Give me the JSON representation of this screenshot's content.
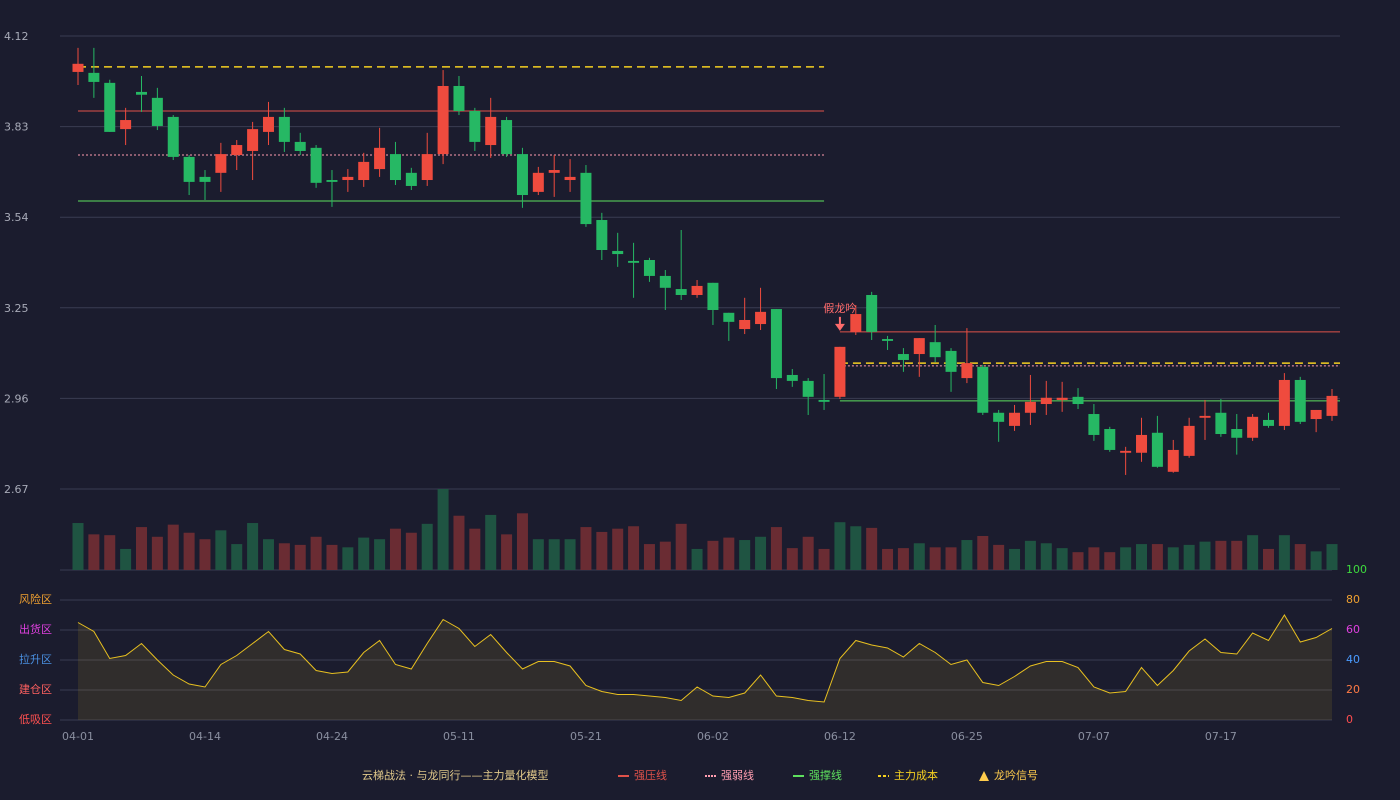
{
  "chart_data": {
    "type": "candlestick",
    "categories": [
      "04-01",
      null,
      null,
      null,
      null,
      null,
      null,
      null,
      "04-14",
      null,
      null,
      null,
      null,
      null,
      null,
      null,
      "04-24",
      null,
      null,
      null,
      null,
      null,
      null,
      null,
      "05-11",
      null,
      null,
      null,
      null,
      null,
      null,
      null,
      "05-21",
      null,
      null,
      null,
      null,
      null,
      null,
      null,
      "06-02",
      null,
      null,
      null,
      null,
      null,
      null,
      null,
      "06-12",
      null,
      null,
      null,
      null,
      null,
      null,
      null,
      "06-25",
      null,
      null,
      null,
      null,
      null,
      null,
      null,
      "07-07",
      null,
      null,
      null,
      null,
      null,
      null,
      null,
      "07-17",
      null,
      null,
      null,
      null,
      null,
      null,
      null
    ],
    "open": [
      4.005,
      4.002,
      3.97,
      3.822,
      3.941,
      3.922,
      3.861,
      3.733,
      3.669,
      3.682,
      3.739,
      3.752,
      3.813,
      3.861,
      3.781,
      3.762,
      3.659,
      3.659,
      3.659,
      3.694,
      3.742,
      3.682,
      3.659,
      3.742,
      3.96,
      3.88,
      3.771,
      3.851,
      3.742,
      3.621,
      3.682,
      3.659,
      3.682,
      3.531,
      3.432,
      3.4,
      3.403,
      3.352,
      3.31,
      3.291,
      3.33,
      3.234,
      3.182,
      3.198,
      3.246,
      3.035,
      3.016,
      2.955,
      2.965,
      3.173,
      3.291,
      3.15,
      3.102,
      3.102,
      3.14,
      3.112,
      3.025,
      3.061,
      2.914,
      2.872,
      2.914,
      2.942,
      2.955,
      2.965,
      2.91,
      2.862,
      2.786,
      2.786,
      2.85,
      2.725,
      2.776,
      2.898,
      2.914,
      2.862,
      2.834,
      2.891,
      2.872,
      3.019,
      2.894,
      2.904
    ],
    "high": [
      4.082,
      4.082,
      3.98,
      3.89,
      3.992,
      3.954,
      3.867,
      3.739,
      3.691,
      3.778,
      3.787,
      3.845,
      3.909,
      3.89,
      3.81,
      3.771,
      3.691,
      3.694,
      3.746,
      3.826,
      3.781,
      3.698,
      3.81,
      4.011,
      3.992,
      3.89,
      3.922,
      3.861,
      3.762,
      3.701,
      3.739,
      3.726,
      3.707,
      3.554,
      3.49,
      3.458,
      3.41,
      3.371,
      3.499,
      3.339,
      3.33,
      3.234,
      3.282,
      3.314,
      3.246,
      3.054,
      3.025,
      3.038,
      3.125,
      3.259,
      3.301,
      3.16,
      3.121,
      3.153,
      3.195,
      3.121,
      3.185,
      3.067,
      2.923,
      2.939,
      3.035,
      3.016,
      3.013,
      2.993,
      2.942,
      2.869,
      2.805,
      2.898,
      2.904,
      2.827,
      2.898,
      2.955,
      2.958,
      2.91,
      2.91,
      2.914,
      3.041,
      3.029,
      2.923,
      2.99
    ],
    "low": [
      3.963,
      3.922,
      3.813,
      3.771,
      3.877,
      3.819,
      3.723,
      3.611,
      3.595,
      3.621,
      3.691,
      3.659,
      3.771,
      3.749,
      3.739,
      3.634,
      3.573,
      3.621,
      3.637,
      3.669,
      3.643,
      3.627,
      3.64,
      3.71,
      3.867,
      3.752,
      3.73,
      3.733,
      3.57,
      3.611,
      3.605,
      3.621,
      3.509,
      3.403,
      3.381,
      3.282,
      3.333,
      3.243,
      3.275,
      3.282,
      3.195,
      3.144,
      3.166,
      3.179,
      2.99,
      2.997,
      2.907,
      2.923,
      2.958,
      3.163,
      3.147,
      3.115,
      3.045,
      3.029,
      3.076,
      2.981,
      3.009,
      2.907,
      2.821,
      2.856,
      2.875,
      2.907,
      2.917,
      2.926,
      2.824,
      2.789,
      2.715,
      2.757,
      2.738,
      2.722,
      2.77,
      2.827,
      2.837,
      2.78,
      2.824,
      2.866,
      2.859,
      2.878,
      2.852,
      2.888
    ],
    "close": [
      4.031,
      3.973,
      3.813,
      3.851,
      3.932,
      3.832,
      3.733,
      3.653,
      3.653,
      3.742,
      3.771,
      3.822,
      3.861,
      3.781,
      3.752,
      3.65,
      3.653,
      3.669,
      3.717,
      3.762,
      3.659,
      3.64,
      3.742,
      3.96,
      3.88,
      3.781,
      3.861,
      3.742,
      3.611,
      3.682,
      3.691,
      3.669,
      3.518,
      3.435,
      3.422,
      3.394,
      3.352,
      3.314,
      3.291,
      3.32,
      3.243,
      3.205,
      3.211,
      3.237,
      3.025,
      3.016,
      2.965,
      2.949,
      3.125,
      3.23,
      3.173,
      3.144,
      3.083,
      3.153,
      3.092,
      3.045,
      3.073,
      2.914,
      2.885,
      2.914,
      2.949,
      2.962,
      2.962,
      2.942,
      2.843,
      2.795,
      2.792,
      2.843,
      2.741,
      2.795,
      2.872,
      2.904,
      2.846,
      2.834,
      2.901,
      2.872,
      3.019,
      2.885,
      2.923,
      2.968
    ],
    "volume": [
      58,
      44,
      43,
      26,
      53,
      41,
      56,
      46,
      38,
      49,
      32,
      58,
      38,
      33,
      31,
      41,
      31,
      28,
      40,
      38,
      51,
      46,
      57,
      100,
      67,
      51,
      68,
      44,
      70,
      38,
      38,
      38,
      53,
      47,
      51,
      54,
      32,
      35,
      57,
      26,
      36,
      40,
      37,
      41,
      53,
      27,
      41,
      26,
      59,
      54,
      52,
      26,
      27,
      33,
      28,
      28,
      37,
      42,
      31,
      26,
      36,
      33,
      27,
      22,
      28,
      22,
      28,
      32,
      32,
      28,
      31,
      35,
      36,
      36,
      43,
      26,
      43,
      32,
      23,
      32
    ],
    "up_color": "#ef4b3e",
    "down_color": "#26b864",
    "volume_up_color": "#1f5442",
    "volume_down_color": "#6a2c33",
    "ylim": [
      2.67,
      4.12
    ],
    "yticks": [
      4.12,
      3.83,
      3.54,
      3.25,
      2.96,
      2.67
    ],
    "grid": true,
    "levels": [
      {
        "name": "强压线",
        "color": "#e0524a",
        "style": "solid",
        "segments": [
          {
            "from": 0,
            "to": 47,
            "value": 3.88
          },
          {
            "from": 48,
            "to": 79,
            "value": 3.173
          }
        ]
      },
      {
        "name": "强弱线",
        "color": "#ff9db0",
        "style": "dotted",
        "segments": [
          {
            "from": 0,
            "to": 47,
            "value": 3.739
          },
          {
            "from": 48,
            "to": 79,
            "value": 3.064
          }
        ]
      },
      {
        "name": "强撑线",
        "color": "#5ee05e",
        "style": "solid",
        "segments": [
          {
            "from": 0,
            "to": 47,
            "value": 3.592
          },
          {
            "from": 48,
            "to": 79,
            "value": 2.952
          }
        ]
      },
      {
        "name": "主力成本",
        "color": "#f5d020",
        "style": "dashed",
        "segments": [
          {
            "from": 0,
            "to": 47,
            "value": 4.021
          },
          {
            "from": 48,
            "to": 79,
            "value": 3.073
          }
        ]
      }
    ],
    "signals": [
      {
        "index": 48,
        "label": "假龙吟"
      }
    ],
    "signal_name": "龙吟信号",
    "signal_color": "#ffcc4d",
    "signal_label_color": "#ff6b6b",
    "legend_title": "云梯战法 · 与龙同行——主力量化模型",
    "indicator": {
      "values": [
        65,
        59,
        41,
        43,
        51,
        40,
        30,
        24,
        22,
        37,
        43,
        51,
        59,
        47,
        44,
        33,
        31,
        32,
        45,
        53,
        37,
        34,
        51,
        67,
        61,
        49,
        57,
        45,
        34,
        39,
        39,
        36,
        23,
        19,
        17,
        17,
        16,
        15,
        13,
        22,
        16,
        15,
        18,
        30,
        16,
        15,
        13,
        12,
        41,
        53,
        50,
        48,
        42,
        51,
        45,
        37,
        40,
        25,
        23,
        29,
        36,
        39,
        39,
        35,
        22,
        18,
        19,
        35,
        23,
        33,
        46,
        54,
        45,
        44,
        58,
        53,
        70,
        52,
        55,
        61
      ],
      "color": "#e8c020",
      "ylim": [
        0,
        100
      ],
      "yticks": [
        0,
        20,
        40,
        60,
        80,
        100
      ],
      "tick_colors": [
        "#ff4d4f",
        "#ff7a45",
        "#4a9bff",
        "#e040e0",
        "#f0a030",
        "#3ddc3d"
      ],
      "zones": [
        {
          "label": "风险区",
          "value": 80,
          "color": "#f0a030"
        },
        {
          "label": "出货区",
          "value": 60,
          "color": "#e040e0"
        },
        {
          "label": "拉升区",
          "value": 40,
          "color": "#4a90e2"
        },
        {
          "label": "建仓区",
          "value": 20,
          "color": "#ff6060"
        },
        {
          "label": "低吸区",
          "value": 0,
          "color": "#ff5050"
        }
      ]
    }
  }
}
